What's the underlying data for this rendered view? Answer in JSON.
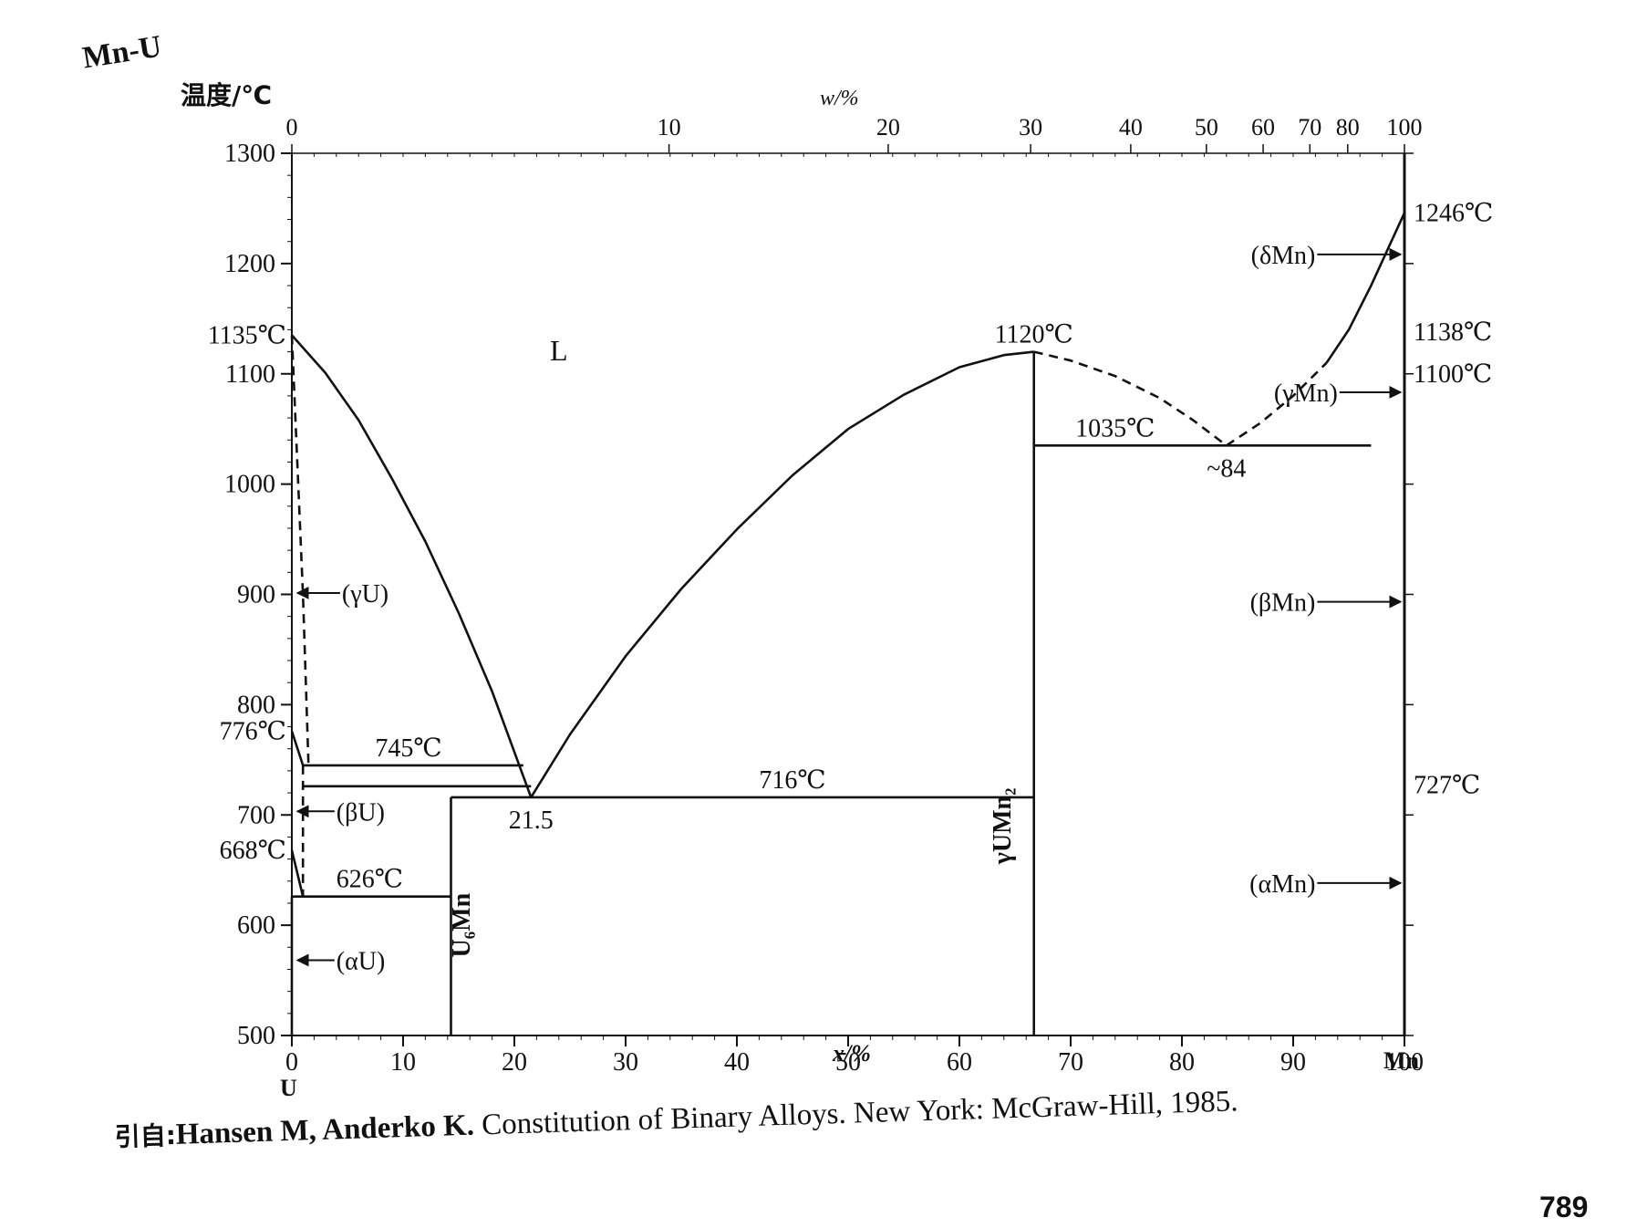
{
  "figure": {
    "system_label": "Mn-U",
    "y_axis_label": "温度/℃",
    "top_axis_label": "w/%",
    "bottom_axis_label": "x/%",
    "left_end_label": "U",
    "right_end_label": "Mn",
    "citation_prefix": "引自:",
    "citation_authors": "Hansen M, Anderko K.",
    "citation_rest": " Constitution of Binary Alloys. New York: McGraw-Hill, 1985.",
    "page_number": "789"
  },
  "chart_data": {
    "type": "line",
    "subtype": "binary phase diagram",
    "x_axis": {
      "label": "x/%",
      "range": [
        0,
        100
      ],
      "ticks": [
        "0",
        "10",
        "20",
        "30",
        "40",
        "50",
        "60",
        "70",
        "80",
        "90",
        "100"
      ]
    },
    "top_axis": {
      "label": "w/%",
      "ticks": [
        {
          "w": "0",
          "x": 0
        },
        {
          "w": "10",
          "x": 33.9
        },
        {
          "w": "20",
          "x": 53.6
        },
        {
          "w": "30",
          "x": 66.4
        },
        {
          "w": "40",
          "x": 75.4
        },
        {
          "w": "50",
          "x": 82.2
        },
        {
          "w": "60",
          "x": 87.3
        },
        {
          "w": "70",
          "x": 91.5
        },
        {
          "w": "80",
          "x": 94.9
        },
        {
          "w": "100",
          "x": 100
        }
      ]
    },
    "y_axis": {
      "label": "温度/℃",
      "range": [
        500,
        1300
      ],
      "ticks": [
        "500",
        "600",
        "700",
        "800",
        "900",
        "1000",
        "1100",
        "1200",
        "1300"
      ]
    },
    "grid": false,
    "point_labels": [
      {
        "text": "1135℃",
        "x": 0,
        "y": 1135,
        "side": "left"
      },
      {
        "text": "776℃",
        "x": 0,
        "y": 776,
        "side": "left"
      },
      {
        "text": "668℃",
        "x": 0,
        "y": 668,
        "side": "left"
      },
      {
        "text": "1246℃",
        "x": 100,
        "y": 1246,
        "side": "right"
      },
      {
        "text": "1138℃",
        "x": 100,
        "y": 1138,
        "side": "right"
      },
      {
        "text": "1100℃",
        "x": 100,
        "y": 1100,
        "side": "right"
      },
      {
        "text": "727℃",
        "x": 100,
        "y": 727,
        "side": "right"
      },
      {
        "text": "1120℃",
        "x": 66.7,
        "y": 1120,
        "side": "above"
      },
      {
        "text": "1035℃",
        "x": 74,
        "y": 1035,
        "side": "above"
      },
      {
        "text": "~84",
        "x": 84,
        "y": 1035,
        "side": "below"
      },
      {
        "text": "745℃",
        "x": 10.5,
        "y": 745,
        "side": "above"
      },
      {
        "text": "716℃",
        "x": 45,
        "y": 716,
        "side": "above"
      },
      {
        "text": "626℃",
        "x": 7,
        "y": 626,
        "side": "above"
      },
      {
        "text": "21.5",
        "x": 21.5,
        "y": 716,
        "side": "below"
      }
    ],
    "phase_labels": [
      {
        "text": "L",
        "x": 24,
        "y": 1112
      },
      {
        "text": "(γU)",
        "x": 4.5,
        "y": 893,
        "arrow": "left"
      },
      {
        "text": "(βU)",
        "x": 4,
        "y": 695,
        "arrow": "left"
      },
      {
        "text": "(αU)",
        "x": 4,
        "y": 560,
        "arrow": "left"
      },
      {
        "text": "U₆Mn",
        "x": 16,
        "y": 600,
        "rotate": true
      },
      {
        "text": "γUMn₂",
        "x": 64.6,
        "y": 690,
        "rotate": true
      },
      {
        "text": "(δMn)",
        "x": 92,
        "y": 1200,
        "arrow": "right"
      },
      {
        "text": "(γMn)",
        "x": 94,
        "y": 1075,
        "arrow": "right"
      },
      {
        "text": "(βMn)",
        "x": 92,
        "y": 885,
        "arrow": "right"
      },
      {
        "text": "(αMn)",
        "x": 92,
        "y": 630,
        "arrow": "right"
      }
    ],
    "series": [
      {
        "style": "solid",
        "points": [
          [
            0,
            1135
          ],
          [
            3,
            1101
          ],
          [
            6,
            1058
          ],
          [
            9,
            1005
          ],
          [
            12,
            948
          ],
          [
            15,
            883
          ],
          [
            18,
            812
          ],
          [
            21.5,
            716
          ]
        ]
      },
      {
        "style": "solid",
        "points": [
          [
            21.5,
            716
          ],
          [
            25,
            773
          ],
          [
            30,
            844
          ],
          [
            35,
            905
          ],
          [
            40,
            959
          ],
          [
            45,
            1008
          ],
          [
            50,
            1050
          ],
          [
            55,
            1081
          ],
          [
            60,
            1106
          ],
          [
            64,
            1117
          ],
          [
            66.7,
            1120
          ]
        ]
      },
      {
        "style": "dashed",
        "points": [
          [
            66.7,
            1120
          ],
          [
            70,
            1112
          ],
          [
            74,
            1098
          ],
          [
            78,
            1078
          ],
          [
            81,
            1058
          ],
          [
            84,
            1035
          ]
        ]
      },
      {
        "style": "dashed",
        "points": [
          [
            84,
            1035
          ],
          [
            87,
            1055
          ],
          [
            90,
            1080
          ],
          [
            93,
            1110
          ]
        ]
      },
      {
        "style": "solid",
        "points": [
          [
            93,
            1110
          ],
          [
            95,
            1140
          ],
          [
            97,
            1180
          ],
          [
            100,
            1246
          ]
        ]
      },
      {
        "style": "dashed",
        "points": [
          [
            0,
            1135
          ],
          [
            1,
            900
          ],
          [
            1.5,
            745
          ]
        ]
      },
      {
        "style": "solid",
        "points": [
          [
            0,
            776
          ],
          [
            1,
            745
          ]
        ]
      },
      {
        "style": "dashed",
        "points": [
          [
            1,
            745
          ],
          [
            1,
            626
          ]
        ]
      },
      {
        "style": "solid",
        "points": [
          [
            0,
            668
          ],
          [
            1,
            626
          ]
        ]
      },
      {
        "style": "solid",
        "points": [
          [
            1,
            745
          ],
          [
            20.8,
            745
          ]
        ]
      },
      {
        "style": "solid",
        "points": [
          [
            1,
            726
          ],
          [
            21.5,
            726
          ]
        ]
      },
      {
        "style": "solid",
        "points": [
          [
            14.3,
            716
          ],
          [
            66.7,
            716
          ]
        ]
      },
      {
        "style": "solid",
        "points": [
          [
            0,
            626
          ],
          [
            14.3,
            626
          ]
        ]
      },
      {
        "style": "solid",
        "points": [
          [
            14.3,
            500
          ],
          [
            14.3,
            716
          ]
        ]
      },
      {
        "style": "solid",
        "points": [
          [
            66.7,
            500
          ],
          [
            66.7,
            1120
          ]
        ]
      },
      {
        "style": "solid",
        "points": [
          [
            66.7,
            1035
          ],
          [
            97,
            1035
          ]
        ]
      },
      {
        "style": "solid",
        "points": [
          [
            0,
            500
          ],
          [
            0,
            626
          ]
        ]
      }
    ]
  }
}
